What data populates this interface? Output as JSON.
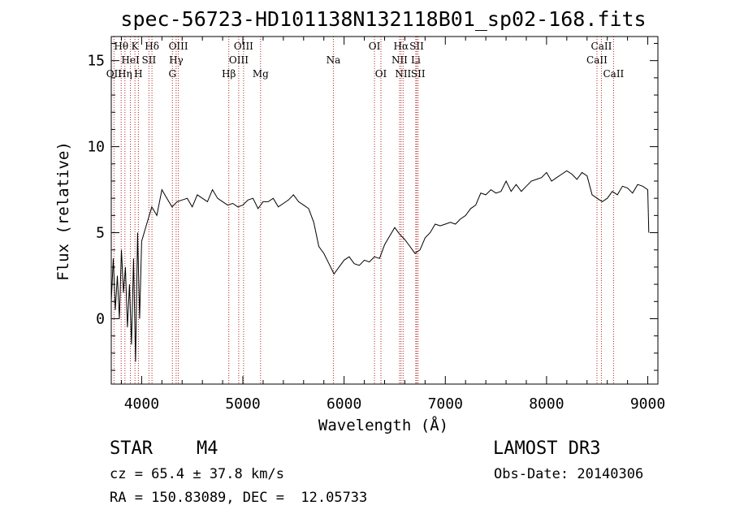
{
  "chart_data": {
    "type": "line",
    "title": "spec-56723-HD101138N132118B01_sp02-168.fits",
    "xlabel": "Wavelength (Å)",
    "ylabel": "Flux (relative)",
    "xlim": [
      3700,
      9100
    ],
    "ylim": [
      -3.8,
      16.4
    ],
    "xticks": [
      4000,
      5000,
      6000,
      7000,
      8000,
      9000
    ],
    "yticks": [
      0,
      5,
      10,
      15
    ],
    "series": [
      {
        "name": "flux",
        "x": [
          3700,
          3720,
          3740,
          3760,
          3780,
          3800,
          3820,
          3840,
          3860,
          3880,
          3900,
          3920,
          3940,
          3960,
          3980,
          4000,
          4050,
          4100,
          4150,
          4200,
          4250,
          4300,
          4350,
          4400,
          4450,
          4500,
          4550,
          4600,
          4650,
          4700,
          4750,
          4800,
          4850,
          4900,
          4950,
          5000,
          5050,
          5100,
          5150,
          5200,
          5250,
          5300,
          5350,
          5400,
          5450,
          5500,
          5550,
          5600,
          5650,
          5700,
          5750,
          5800,
          5850,
          5900,
          5950,
          6000,
          6050,
          6100,
          6150,
          6200,
          6250,
          6300,
          6350,
          6400,
          6450,
          6500,
          6550,
          6600,
          6650,
          6700,
          6750,
          6800,
          6850,
          6900,
          6950,
          7000,
          7050,
          7100,
          7150,
          7200,
          7250,
          7300,
          7350,
          7400,
          7450,
          7500,
          7550,
          7600,
          7650,
          7700,
          7750,
          7800,
          7850,
          7900,
          7950,
          8000,
          8050,
          8100,
          8150,
          8200,
          8250,
          8300,
          8350,
          8400,
          8450,
          8500,
          8550,
          8600,
          8650,
          8700,
          8750,
          8800,
          8850,
          8900,
          8950,
          9000,
          9010
        ],
        "y": [
          1.0,
          3.5,
          0.5,
          2.5,
          0.0,
          4.0,
          1.5,
          3.0,
          -0.5,
          2.0,
          -1.5,
          3.5,
          -2.5,
          5.0,
          0.0,
          4.5,
          5.5,
          6.5,
          6.0,
          7.5,
          7.0,
          6.5,
          6.8,
          6.9,
          7.0,
          6.5,
          7.2,
          7.0,
          6.8,
          7.5,
          7.0,
          6.8,
          6.6,
          6.7,
          6.5,
          6.6,
          6.9,
          7.0,
          6.4,
          6.8,
          6.8,
          7.0,
          6.5,
          6.7,
          6.9,
          7.2,
          6.8,
          6.6,
          6.4,
          5.6,
          4.2,
          3.8,
          3.2,
          2.6,
          3.0,
          3.4,
          3.6,
          3.2,
          3.1,
          3.4,
          3.3,
          3.6,
          3.5,
          4.3,
          4.8,
          5.3,
          4.9,
          4.6,
          4.2,
          3.8,
          4.0,
          4.7,
          5.0,
          5.5,
          5.4,
          5.5,
          5.6,
          5.5,
          5.8,
          6.0,
          6.4,
          6.6,
          7.3,
          7.2,
          7.5,
          7.3,
          7.4,
          8.0,
          7.4,
          7.8,
          7.4,
          7.7,
          8.0,
          8.1,
          8.2,
          8.5,
          8.0,
          8.2,
          8.4,
          8.6,
          8.4,
          8.1,
          8.5,
          8.3,
          7.2,
          7.0,
          6.8,
          7.0,
          7.4,
          7.2,
          7.7,
          7.6,
          7.3,
          7.8,
          7.7,
          7.5,
          5.0
        ]
      }
    ],
    "spectral_lines": [
      {
        "label": "OII",
        "wavelength": 3727,
        "row": 2
      },
      {
        "label": "Hθ",
        "wavelength": 3798,
        "row": 0
      },
      {
        "label": "Hη",
        "wavelength": 3835,
        "row": 2
      },
      {
        "label": "HeI",
        "wavelength": 3889,
        "row": 1
      },
      {
        "label": "K",
        "wavelength": 3934,
        "row": 0
      },
      {
        "label": "H",
        "wavelength": 3968,
        "row": 2
      },
      {
        "label": "SII",
        "wavelength": 4072,
        "row": 1
      },
      {
        "label": "Hδ",
        "wavelength": 4102,
        "row": 0
      },
      {
        "label": "G",
        "wavelength": 4304,
        "row": 2
      },
      {
        "label": "Hγ",
        "wavelength": 4341,
        "row": 1
      },
      {
        "label": "OIII",
        "wavelength": 4363,
        "row": 0
      },
      {
        "label": "Hβ",
        "wavelength": 4861,
        "row": 2
      },
      {
        "label": "OIII",
        "wavelength": 4959,
        "row": 1
      },
      {
        "label": "OIII",
        "wavelength": 5007,
        "row": 0
      },
      {
        "label": "Mg",
        "wavelength": 5175,
        "row": 2
      },
      {
        "label": "Na",
        "wavelength": 5894,
        "row": 1
      },
      {
        "label": "OI",
        "wavelength": 6300,
        "row": 0
      },
      {
        "label": "OI",
        "wavelength": 6364,
        "row": 2
      },
      {
        "label": "NII",
        "wavelength": 6548,
        "row": 1
      },
      {
        "label": "Hα",
        "wavelength": 6563,
        "row": 0
      },
      {
        "label": "NII",
        "wavelength": 6583,
        "row": 2
      },
      {
        "label": "Li",
        "wavelength": 6708,
        "row": 1
      },
      {
        "label": "SII",
        "wavelength": 6717,
        "row": 0
      },
      {
        "label": "SII",
        "wavelength": 6731,
        "row": 2
      },
      {
        "label": "CaII",
        "wavelength": 8498,
        "row": 1
      },
      {
        "label": "CaII",
        "wavelength": 8542,
        "row": 0
      },
      {
        "label": "CaII",
        "wavelength": 8662,
        "row": 2
      }
    ]
  },
  "info": {
    "object_class": "STAR",
    "subclass": "M4",
    "survey": "LAMOST DR3",
    "redshift": "cz = 65.4 ± 37.8 km/s",
    "obs_date": "Obs-Date: 20140306",
    "coords": "RA = 150.83089, DEC =  12.05733"
  },
  "colors": {
    "line_marker": "#b22222",
    "spectrum": "#000000"
  }
}
